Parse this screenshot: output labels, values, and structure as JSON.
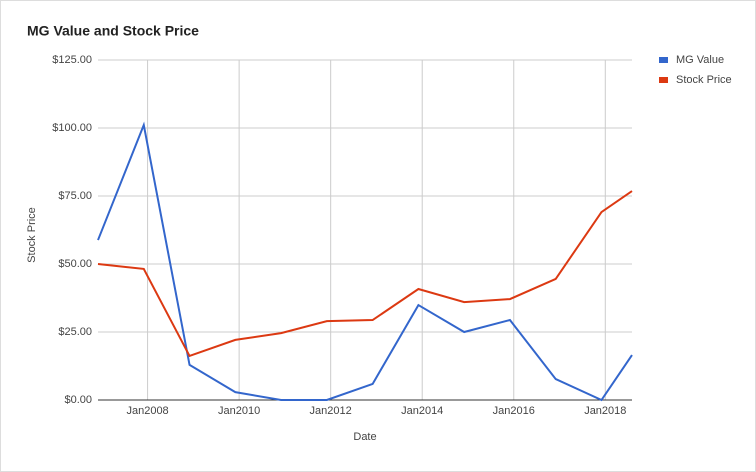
{
  "chart_data": {
    "type": "line",
    "title": "MG Value and Stock Price",
    "x_label": "Date",
    "y_label": "Stock Price",
    "x": [
      "2006-12",
      "2007-12",
      "2008-12",
      "2009-12",
      "2010-12",
      "2011-12",
      "2012-12",
      "2013-12",
      "2014-12",
      "2015-12",
      "2016-12",
      "2017-12",
      "2018-08"
    ],
    "xlim": [
      "2006-12",
      "2018-08"
    ],
    "xticks": [
      {
        "value": "2008-01",
        "label": "Jan2008"
      },
      {
        "value": "2010-01",
        "label": "Jan2010"
      },
      {
        "value": "2012-01",
        "label": "Jan2012"
      },
      {
        "value": "2014-01",
        "label": "Jan2014"
      },
      {
        "value": "2016-01",
        "label": "Jan2016"
      },
      {
        "value": "2018-01",
        "label": "Jan2018"
      }
    ],
    "ylim": [
      0,
      125
    ],
    "yticks": [
      {
        "value": 0,
        "label": "$0.00"
      },
      {
        "value": 25,
        "label": "$25.00"
      },
      {
        "value": 50,
        "label": "$50.00"
      },
      {
        "value": 75,
        "label": "$75.00"
      },
      {
        "value": 100,
        "label": "$100.00"
      },
      {
        "value": 125,
        "label": "$125.00"
      }
    ],
    "grid": true,
    "legend": "right",
    "series": [
      {
        "name": "MG Value",
        "color": "#3366cc",
        "values": [
          58.8,
          101.1,
          12.9,
          2.9,
          0,
          0,
          5.9,
          34.9,
          25,
          29.4,
          7.7,
          0,
          16.5
        ]
      },
      {
        "name": "Stock Price",
        "color": "#dc3912",
        "values": [
          50,
          48.2,
          16.2,
          22.1,
          24.6,
          29,
          29.4,
          40.8,
          36,
          37.1,
          44.5,
          69.1,
          76.8
        ]
      }
    ]
  }
}
